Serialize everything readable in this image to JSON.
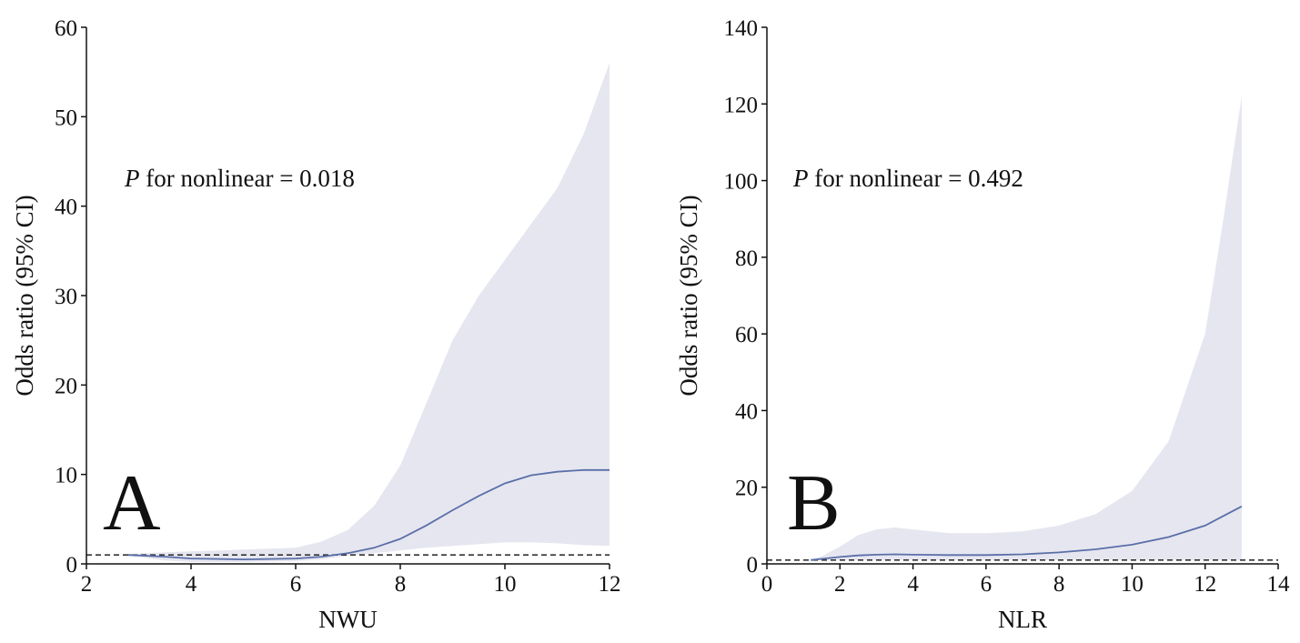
{
  "chart_data": [
    {
      "type": "line",
      "panel_label": "A",
      "xlabel": "NWU",
      "ylabel": "Odds ratio (95% CI)",
      "xlim": [
        2,
        12
      ],
      "ylim": [
        0,
        60
      ],
      "xticks": [
        2,
        4,
        6,
        8,
        10,
        12
      ],
      "yticks": [
        0,
        10,
        20,
        30,
        40,
        50,
        60
      ],
      "annotation": {
        "italic": "P",
        "text": " for nonlinear = 0.018"
      },
      "reference_line": 1,
      "colors": {
        "line": "#5a6fa8",
        "band": "#e6e6f0",
        "reference": "#333333"
      },
      "series": [
        {
          "x": [
            2.8,
            3.5,
            4.0,
            5.0,
            6.0,
            6.5,
            7.0,
            7.5,
            8.0,
            8.5,
            9.0,
            9.5,
            10.0,
            10.5,
            11.0,
            11.5,
            12.0
          ],
          "y": [
            1.0,
            0.8,
            0.6,
            0.5,
            0.6,
            0.8,
            1.2,
            1.8,
            2.8,
            4.3,
            6.0,
            7.6,
            9.0,
            9.9,
            10.3,
            10.5,
            10.5
          ],
          "lower": [
            0.9,
            0.4,
            0.2,
            0.2,
            0.3,
            0.5,
            0.9,
            1.2,
            1.5,
            1.8,
            2.0,
            2.2,
            2.4,
            2.4,
            2.3,
            2.1,
            2.0
          ],
          "upper": [
            1.1,
            1.3,
            1.4,
            1.6,
            1.8,
            2.5,
            3.8,
            6.5,
            11.0,
            18.0,
            25.0,
            30.0,
            34.0,
            38.0,
            42.0,
            48.0,
            56.0
          ]
        }
      ]
    },
    {
      "type": "line",
      "panel_label": "B",
      "xlabel": "NLR",
      "ylabel": "Odds ratio (95% CI)",
      "xlim": [
        0,
        14
      ],
      "ylim": [
        0,
        140
      ],
      "xticks": [
        0,
        2,
        4,
        6,
        8,
        10,
        12,
        14
      ],
      "yticks": [
        0,
        20,
        40,
        60,
        80,
        100,
        120,
        140
      ],
      "annotation": {
        "italic": "P",
        "text": " for nonlinear = 0.492"
      },
      "reference_line": 1,
      "colors": {
        "line": "#5a6fa8",
        "band": "#e6e6f0",
        "reference": "#333333"
      },
      "series": [
        {
          "x": [
            1.2,
            1.5,
            2.0,
            2.5,
            3.0,
            3.5,
            4.0,
            5.0,
            6.0,
            7.0,
            8.0,
            9.0,
            10.0,
            11.0,
            12.0,
            12.5,
            13.0
          ],
          "y": [
            1.0,
            1.3,
            1.8,
            2.2,
            2.4,
            2.5,
            2.4,
            2.3,
            2.3,
            2.5,
            3.0,
            3.8,
            5.0,
            7.0,
            10.0,
            12.5,
            15.0
          ],
          "lower": [
            0.9,
            1.0,
            1.0,
            1.0,
            1.0,
            1.0,
            1.0,
            1.0,
            1.0,
            1.0,
            1.0,
            1.0,
            1.0,
            1.0,
            1.0,
            1.0,
            1.0
          ],
          "upper": [
            1.2,
            2.0,
            4.5,
            7.5,
            9.0,
            9.5,
            9.0,
            8.0,
            8.0,
            8.5,
            10.0,
            13.0,
            19.0,
            32.0,
            60.0,
            90.0,
            122.0
          ]
        }
      ]
    }
  ]
}
